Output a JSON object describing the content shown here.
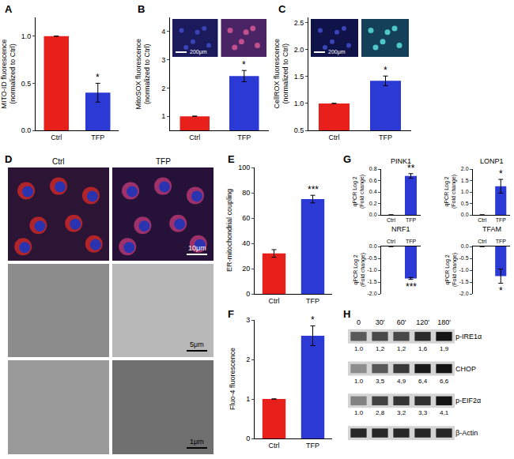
{
  "chart_data": [
    {
      "panel": "A",
      "type": "bar",
      "categories": [
        "Ctrl",
        "TFP"
      ],
      "values": [
        1.0,
        0.4
      ],
      "error": [
        null,
        0.1
      ],
      "colors": [
        "#e8201c",
        "#2b3ad4"
      ],
      "ylabel": "MITO-ID fluorescence\n(normalized to Ctrl)",
      "ylim": [
        0,
        1.2
      ],
      "yticks": [
        {
          "value": 0,
          "label": "0.0"
        },
        0.5,
        {
          "value": 1,
          "label": "1.0"
        }
      ],
      "annotations": [
        {
          "category": "TFP",
          "text": "*"
        }
      ],
      "grid": false
    },
    {
      "panel": "B",
      "type": "bar",
      "categories": [
        "Ctrl",
        "TFP"
      ],
      "values": [
        1.0,
        2.42
      ],
      "error": [
        null,
        0.2
      ],
      "colors": [
        "#e8201c",
        "#2b3ad4"
      ],
      "ylabel": "MitoSOX fluorescence\n(normalized to Ctrl)",
      "ylim": [
        0.5,
        4.5
      ],
      "yticks": [
        1,
        2,
        3,
        4
      ],
      "image_scale_bar": "200μm",
      "annotations": [
        {
          "category": "TFP",
          "text": "*"
        }
      ],
      "grid": false
    },
    {
      "panel": "C",
      "type": "bar",
      "categories": [
        "Ctrl",
        "TFP"
      ],
      "values": [
        1.0,
        1.42
      ],
      "error": [
        null,
        0.09
      ],
      "colors": [
        "#e8201c",
        "#2b3ad4"
      ],
      "ylabel": "CellROX fluorescence\n(normalized to Ctrl)",
      "ylim": [
        0.5,
        2.6
      ],
      "yticks": [
        0.5,
        {
          "value": 1,
          "label": "1.0"
        },
        1.5,
        {
          "value": 2,
          "label": "2.0"
        },
        2.5
      ],
      "image_scale_bar": "200μm",
      "annotations": [
        {
          "category": "TFP",
          "text": "*"
        }
      ],
      "grid": false
    },
    {
      "panel": "D",
      "type": "image",
      "columns": [
        "Ctrl",
        "TFP"
      ],
      "scale_bars": [
        "10μm",
        "5μm",
        "1μm"
      ]
    },
    {
      "panel": "E",
      "type": "bar",
      "categories": [
        "Ctrl",
        "TFP"
      ],
      "values": [
        32,
        75
      ],
      "error": [
        3,
        3
      ],
      "colors": [
        "#e8201c",
        "#2b3ad4"
      ],
      "ylabel": "ER-mitochondrial coupling",
      "ylim": [
        0,
        100
      ],
      "yticks": [
        0,
        20,
        40,
        60,
        80,
        100
      ],
      "annotations": [
        {
          "category": "TFP",
          "text": "***"
        }
      ],
      "grid": false
    },
    {
      "panel": "F",
      "type": "bar",
      "categories": [
        "Ctrl",
        "TFP"
      ],
      "values": [
        1.0,
        2.6
      ],
      "error": [
        null,
        0.25
      ],
      "colors": [
        "#e8201c",
        "#2b3ad4"
      ],
      "ylabel": "Fluo-4 fluorescence",
      "ylim": [
        0,
        3
      ],
      "yticks": [
        0,
        1,
        2,
        3
      ],
      "annotations": [
        {
          "category": "TFP",
          "text": "*"
        }
      ],
      "grid": false
    },
    {
      "panel": "G",
      "type": "bar",
      "title": "PINK1",
      "categories": [
        "Ctrl",
        "TFP"
      ],
      "values": [
        0,
        0.68
      ],
      "error": [
        null,
        0.04
      ],
      "colors": [
        "#e8201c",
        "#2b3ad4"
      ],
      "ylabel": "qPCR Log 2\n(Fold change)",
      "ylim": [
        0,
        0.8
      ],
      "yticks": [
        {
          "value": 0,
          "label": "0.0"
        },
        0.2,
        0.4,
        0.6,
        0.8
      ],
      "annotations": [
        {
          "category": "TFP",
          "text": "**"
        }
      ],
      "grid": false
    },
    {
      "type": "bar",
      "title": "LONP1",
      "categories": [
        "Ctrl",
        "TFP"
      ],
      "values": [
        0,
        1.25
      ],
      "error": [
        null,
        0.3
      ],
      "colors": [
        "#e8201c",
        "#2b3ad4"
      ],
      "ylabel": "qPCR Log 2\n(Fold change)",
      "ylim": [
        0,
        2
      ],
      "yticks": [
        {
          "value": 0,
          "label": "0.0"
        },
        0.5,
        {
          "value": 1,
          "label": "1.0"
        },
        1.5,
        {
          "value": 2,
          "label": "2.0"
        }
      ],
      "annotations": [
        {
          "category": "TFP",
          "text": "*"
        }
      ],
      "grid": false
    },
    {
      "type": "bar",
      "title": "NRF1",
      "categories": [
        "Ctrl",
        "TFP"
      ],
      "values": [
        0,
        -1.35
      ],
      "error": [
        null,
        0.04
      ],
      "colors": [
        "#e8201c",
        "#2b3ad4"
      ],
      "ylabel": "qPCR Log 2\n(Fold change)",
      "ylim": [
        -2,
        0
      ],
      "yticks": [
        {
          "value": -2,
          "label": "-2.0"
        },
        -1.5,
        {
          "value": -1,
          "label": "-1.0"
        },
        -0.5,
        {
          "value": 0,
          "label": "0.0"
        }
      ],
      "annotations": [
        {
          "category": "TFP",
          "text": "***"
        }
      ],
      "grid": false
    },
    {
      "type": "bar",
      "title": "TFAM",
      "categories": [
        "Ctrl",
        "TFP"
      ],
      "values": [
        0,
        -1.25
      ],
      "error": [
        null,
        0.3
      ],
      "colors": [
        "#e8201c",
        "#2b3ad4"
      ],
      "ylabel": "qPCR Log 2\n(Fold change)",
      "ylim": [
        -2,
        0
      ],
      "yticks": [
        {
          "value": -2,
          "label": "-2.0"
        },
        -1.5,
        {
          "value": -1,
          "label": "-1.0"
        },
        -0.5,
        {
          "value": 0,
          "label": "0.0"
        }
      ],
      "annotations": [
        {
          "category": "TFP",
          "text": "*"
        }
      ],
      "grid": false
    },
    {
      "panel": "H",
      "type": "blot",
      "categories": [
        "0",
        "30'",
        "60'",
        "120'",
        "180'"
      ],
      "rows": [
        {
          "name": "p-IRE1α",
          "values": [
            1.0,
            1.2,
            1.2,
            1.6,
            1.9
          ],
          "value_labels": [
            "1.0",
            "1,2",
            "1,2",
            "1,6",
            "1,9"
          ]
        },
        {
          "name": "CHOP",
          "values": [
            1.0,
            3.5,
            4.9,
            6.4,
            6.6
          ],
          "value_labels": [
            "1.0",
            "3,5",
            "4,9",
            "6,4",
            "6,6"
          ]
        },
        {
          "name": "p-EIF2α",
          "values": [
            1.0,
            2.8,
            3.2,
            3.3,
            4.1
          ],
          "value_labels": [
            "1.0",
            "2,8",
            "3,2",
            "3,3",
            "4,1"
          ]
        },
        {
          "name": "β-Actin"
        }
      ]
    }
  ]
}
